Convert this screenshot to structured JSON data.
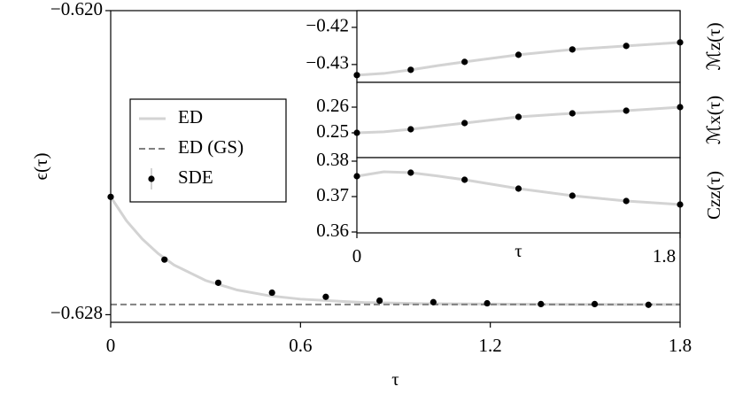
{
  "chart_data": [
    {
      "type": "line",
      "xlabel": "τ",
      "ylabel": "ϵ(τ)",
      "xlim": [
        0,
        1.8
      ],
      "ylim": [
        -0.6282,
        -0.62
      ],
      "xticks": [
        0,
        0.6,
        1.2,
        1.8
      ],
      "yticks": [
        {
          "value": -0.628,
          "label": "−0.628"
        },
        {
          "value": -0.62,
          "label": "−0.620"
        }
      ],
      "legend": "upper left",
      "series": [
        {
          "name": "ED",
          "color": "#d3d3d3",
          "style": "solid",
          "x": [
            0,
            0.05,
            0.1,
            0.15,
            0.2,
            0.3,
            0.4,
            0.5,
            0.6,
            0.8,
            1.0,
            1.2,
            1.5,
            1.8
          ],
          "values": [
            -0.6249,
            -0.62553,
            -0.62601,
            -0.62639,
            -0.62669,
            -0.6271,
            -0.62735,
            -0.6275,
            -0.62759,
            -0.62768,
            -0.62771,
            -0.62772,
            -0.62773,
            -0.62773
          ]
        },
        {
          "name": "ED (GS)",
          "color": "#808080",
          "style": "dashed",
          "x": [
            0,
            1.8
          ],
          "values": [
            -0.62773,
            -0.62773
          ]
        },
        {
          "name": "SDE",
          "color": "#000000",
          "style": "markers",
          "x": [
            0,
            0.17,
            0.34,
            0.51,
            0.68,
            0.85,
            1.02,
            1.19,
            1.36,
            1.53,
            1.7
          ],
          "values": [
            -0.6249,
            -0.62655,
            -0.62716,
            -0.62742,
            -0.62753,
            -0.62763,
            -0.62767,
            -0.6277,
            -0.62772,
            -0.62772,
            -0.62774
          ]
        }
      ]
    },
    {
      "type": "line",
      "ylabel": "ℳz(τ)",
      "xlim": [
        0,
        1.8
      ],
      "ylim": [
        -0.4348,
        -0.4155
      ],
      "yticks": [
        {
          "value": -0.43,
          "label": "−0.43"
        },
        {
          "value": -0.42,
          "label": "−0.42"
        }
      ],
      "series": [
        {
          "color": "#d3d3d3",
          "style": "solid",
          "x": [
            0,
            0.15,
            0.3,
            0.45,
            0.6,
            0.9,
            1.2,
            1.5,
            1.8
          ],
          "values": [
            -0.43286,
            -0.4324,
            -0.43143,
            -0.4303,
            -0.42929,
            -0.42738,
            -0.42595,
            -0.425,
            -0.42405
          ]
        },
        {
          "color": "#000000",
          "style": "markers",
          "x": [
            0,
            0.3,
            0.6,
            0.9,
            1.2,
            1.5,
            1.8
          ],
          "values": [
            -0.43286,
            -0.43143,
            -0.42929,
            -0.42738,
            -0.42595,
            -0.425,
            -0.42405
          ]
        }
      ]
    },
    {
      "type": "line",
      "ylabel": "ℳx(τ)",
      "xlim": [
        0,
        1.8
      ],
      "ylim": [
        0.24034,
        0.26966
      ],
      "yticks": [
        0.25,
        0.26
      ],
      "series": [
        {
          "color": "#d3d3d3",
          "style": "solid",
          "x": [
            0,
            0.15,
            0.3,
            0.45,
            0.6,
            0.9,
            1.2,
            1.5,
            1.8
          ],
          "values": [
            0.25,
            0.2504,
            0.25138,
            0.2526,
            0.25379,
            0.25621,
            0.25759,
            0.25862,
            0.26
          ]
        },
        {
          "color": "#000000",
          "style": "markers",
          "x": [
            0,
            0.3,
            0.6,
            0.9,
            1.2,
            1.5,
            1.8
          ],
          "values": [
            0.25,
            0.25138,
            0.25379,
            0.25621,
            0.25759,
            0.25862,
            0.26
          ]
        }
      ]
    },
    {
      "type": "line",
      "ylabel": "Czz(τ)",
      "xlabel": "τ",
      "xlim": [
        0,
        1.8
      ],
      "ylim": [
        0.35975,
        0.381
      ],
      "xticks": [
        0,
        1.8
      ],
      "yticks": [
        0.36,
        0.37,
        0.38
      ],
      "series": [
        {
          "color": "#d3d3d3",
          "style": "solid",
          "x": [
            0,
            0.15,
            0.3,
            0.45,
            0.6,
            0.9,
            1.2,
            1.5,
            1.8
          ],
          "values": [
            0.37575,
            0.377,
            0.37675,
            0.3758,
            0.37475,
            0.37225,
            0.37025,
            0.36875,
            0.36775
          ]
        },
        {
          "color": "#000000",
          "style": "markers",
          "x": [
            0,
            0.3,
            0.6,
            0.9,
            1.2,
            1.5,
            1.8
          ],
          "values": [
            0.37575,
            0.37675,
            0.37475,
            0.37225,
            0.37025,
            0.36875,
            0.36775
          ]
        }
      ]
    }
  ]
}
